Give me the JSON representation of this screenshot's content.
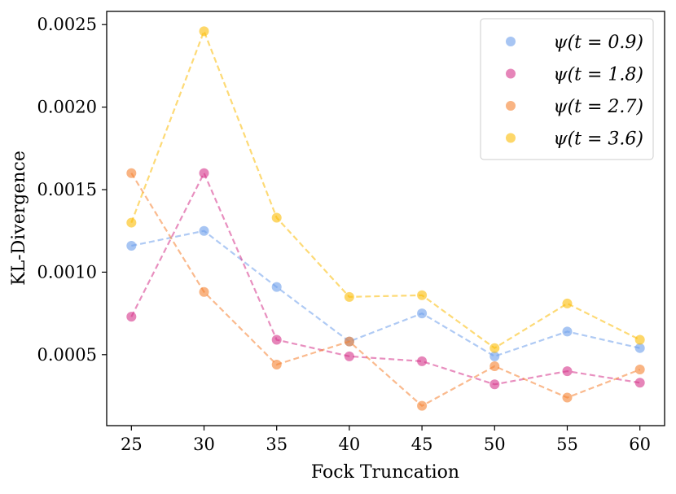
{
  "chart_data": {
    "type": "line",
    "title": "",
    "xlabel": "Fock Truncation",
    "ylabel": "KL-Divergence",
    "x": [
      25,
      30,
      35,
      40,
      45,
      50,
      55,
      60
    ],
    "xticks": [
      "25",
      "30",
      "35",
      "40",
      "45",
      "50",
      "55",
      "60"
    ],
    "yticks": [
      {
        "value": 0.0005,
        "label": "0.0005"
      },
      {
        "value": 0.001,
        "label": "0.0010"
      },
      {
        "value": 0.0015,
        "label": "0.0015"
      },
      {
        "value": 0.002,
        "label": "0.0020"
      },
      {
        "value": 0.0025,
        "label": "0.0025"
      }
    ],
    "xlim": [
      23.3,
      61.7
    ],
    "ylim": [
      7e-05,
      0.00258
    ],
    "grid": false,
    "legend_position": "top-right",
    "series": [
      {
        "name": "ψ(t = 0.9)",
        "color": "#6d9eeb",
        "values": [
          0.00116,
          0.00125,
          0.00091,
          0.00058,
          0.00075,
          0.00049,
          0.00064,
          0.00054
        ]
      },
      {
        "name": "ψ(t = 1.8)",
        "color": "#d6338a",
        "values": [
          0.00073,
          0.0016,
          0.00059,
          0.00049,
          0.00046,
          0.00032,
          0.0004,
          0.00033
        ]
      },
      {
        "name": "ψ(t = 2.7)",
        "color": "#f58231",
        "values": [
          0.0016,
          0.00088,
          0.00044,
          0.00058,
          0.00019,
          0.00043,
          0.00024,
          0.00041
        ]
      },
      {
        "name": "ψ(t = 3.6)",
        "color": "#fbbc05",
        "values": [
          0.0013,
          0.00246,
          0.00133,
          0.00085,
          0.00086,
          0.00054,
          0.00081,
          0.00059
        ]
      }
    ]
  }
}
